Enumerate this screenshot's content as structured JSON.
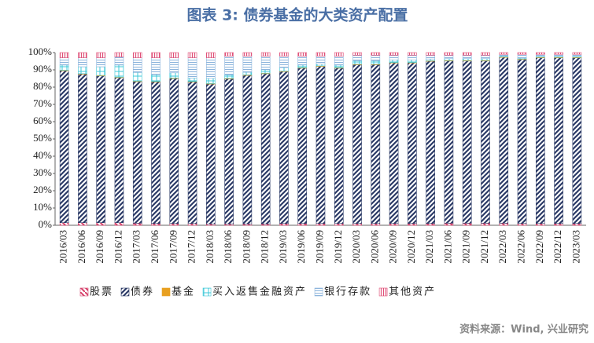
{
  "chart_data": {
    "type": "stacked_bar_100",
    "title": "图表 3:  债券基金的大类资产配置",
    "source": "资料来源：Wind, 兴业研究",
    "categories": [
      "2016/03",
      "2016/06",
      "2016/09",
      "2016/12",
      "2017/03",
      "2017/06",
      "2017/09",
      "2017/12",
      "2018/03",
      "2018/06",
      "2018/09",
      "2018/12",
      "2019/03",
      "2019/06",
      "2019/09",
      "2019/12",
      "2020/03",
      "2020/06",
      "2020/09",
      "2020/12",
      "2021/03",
      "2021/06",
      "2021/09",
      "2021/12",
      "2022/03",
      "2022/06",
      "2022/09",
      "2022/12",
      "2023/03"
    ],
    "series": [
      {
        "name": "股票",
        "color": "#d6406a",
        "values": [
          1.5,
          1.5,
          1.5,
          1.5,
          1.2,
          1.0,
          1.0,
          1.0,
          0.8,
          0.8,
          0.8,
          0.8,
          1.0,
          1.0,
          1.0,
          1.0,
          1.0,
          1.0,
          1.0,
          1.0,
          1.0,
          1.2,
          1.2,
          1.2,
          1.2,
          1.0,
          1.0,
          1.0,
          1.0
        ]
      },
      {
        "name": "债券",
        "color": "#2b3a66",
        "values": [
          88,
          86,
          85,
          84,
          82,
          82,
          84,
          82,
          81,
          84,
          86,
          87,
          88,
          90,
          91,
          90,
          92,
          92,
          93,
          93,
          94,
          94,
          94,
          94,
          96,
          95,
          96,
          96,
          96
        ]
      },
      {
        "name": "基金",
        "color": "#e8a020",
        "values": [
          0.3,
          0.3,
          0.3,
          0.3,
          0.3,
          0.3,
          0.3,
          0.3,
          0.3,
          0.3,
          0.3,
          0.3,
          0.3,
          0.3,
          0.3,
          0.3,
          0.3,
          0.3,
          0.3,
          0.3,
          0.3,
          0.3,
          0.3,
          0.3,
          0.3,
          0.3,
          0.3,
          0.3,
          0.3
        ]
      },
      {
        "name": "买入返售金融资产",
        "color": "#3cc8d8",
        "values": [
          3,
          4,
          5,
          7,
          5,
          4,
          3,
          2,
          3,
          2,
          1.5,
          2,
          2,
          1.5,
          1,
          1.5,
          2,
          2,
          1.5,
          1.5,
          1,
          1,
          1,
          1,
          0.5,
          0.5,
          0.5,
          0.5,
          0.5
        ]
      },
      {
        "name": "银行存款",
        "color": "#8cb4dc",
        "values": [
          4.2,
          5.2,
          5.2,
          4.7,
          8.5,
          9.7,
          8.7,
          11.7,
          11.9,
          10.9,
          9.4,
          7.9,
          6.7,
          5.2,
          4.7,
          5.2,
          3.2,
          3.2,
          2.7,
          2.7,
          2.2,
          2.0,
          2.0,
          2.0,
          1.0,
          2.2,
          1.2,
          1.2,
          1.2
        ]
      },
      {
        "name": "其他资产",
        "color": "#e05078",
        "values": [
          3,
          3,
          3,
          2.5,
          3,
          3,
          3,
          3,
          3,
          2,
          2,
          2,
          2,
          2,
          2,
          2,
          1.5,
          1.5,
          1.5,
          1.5,
          1.5,
          1.5,
          1.5,
          1.5,
          1,
          1,
          1,
          1,
          1
        ]
      }
    ],
    "ylim": [
      0,
      100
    ],
    "yticks": [
      {
        "value": 0,
        "label": "0%"
      },
      {
        "value": 10,
        "label": "10%"
      },
      {
        "value": 20,
        "label": "20%"
      },
      {
        "value": 30,
        "label": "30%"
      },
      {
        "value": 40,
        "label": "40%"
      },
      {
        "value": 50,
        "label": "50%"
      },
      {
        "value": 60,
        "label": "60%"
      },
      {
        "value": 70,
        "label": "70%"
      },
      {
        "value": 80,
        "label": "80%"
      },
      {
        "value": 90,
        "label": "90%"
      },
      {
        "value": 100,
        "label": "100%"
      }
    ],
    "title_color": "#4a6fa5"
  }
}
